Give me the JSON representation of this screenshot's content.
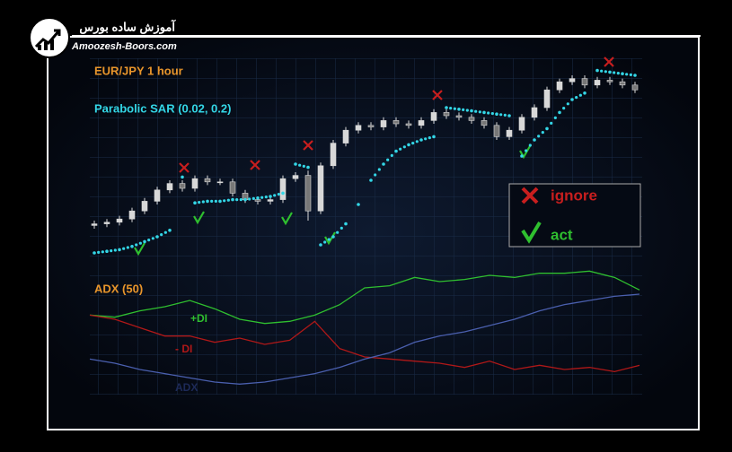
{
  "header": {
    "site_name": "آموزش ساده بورس",
    "url": "Amoozesh-Boors.com"
  },
  "chart_data": {
    "type": "candlestick",
    "title": "EUR/JPY 1 hour",
    "indicator": "Parabolic SAR (0.02, 0.2)",
    "legend": {
      "ignore": "ignore",
      "act": "act"
    },
    "ylim": [
      -20,
      100
    ],
    "open": [
      2,
      3,
      4,
      6,
      11,
      17,
      24,
      28,
      25,
      31,
      29,
      29,
      22,
      18,
      17,
      18,
      31,
      33,
      11,
      39,
      53,
      61,
      64,
      63,
      67,
      65,
      64,
      67,
      72,
      70,
      69,
      67,
      64,
      57,
      61,
      69,
      75,
      86,
      91,
      93,
      89,
      92,
      91,
      89
    ],
    "close": [
      3,
      4,
      6,
      11,
      17,
      24,
      28,
      25,
      31,
      29,
      29,
      22,
      18,
      17,
      18,
      31,
      33,
      11,
      39,
      53,
      61,
      64,
      63,
      67,
      65,
      64,
      67,
      72,
      70,
      69,
      67,
      64,
      57,
      61,
      69,
      75,
      86,
      91,
      93,
      89,
      92,
      91,
      89,
      86
    ],
    "high": [
      5,
      6,
      8,
      13,
      19,
      26,
      30,
      30,
      33,
      33,
      31,
      31,
      24,
      20,
      20,
      33,
      35,
      36,
      41,
      55,
      63,
      66,
      66,
      69,
      69,
      67,
      69,
      74,
      74,
      72,
      71,
      69,
      66,
      63,
      71,
      77,
      88,
      93,
      95,
      95,
      94,
      94,
      93,
      91
    ],
    "low": [
      0,
      1,
      2,
      4,
      9,
      15,
      22,
      23,
      23,
      27,
      27,
      20,
      16,
      15,
      15,
      16,
      29,
      5,
      9,
      37,
      51,
      59,
      61,
      61,
      63,
      62,
      62,
      65,
      68,
      67,
      65,
      62,
      55,
      55,
      59,
      67,
      73,
      84,
      89,
      87,
      87,
      89,
      87,
      84
    ],
    "sar": [
      -15,
      -14,
      -13,
      -11,
      -8,
      -5,
      -1,
      32,
      16,
      17,
      17,
      18,
      18,
      19,
      20,
      22,
      40,
      38,
      -10,
      -5,
      3,
      15,
      30,
      40,
      48,
      52,
      55,
      57,
      75,
      74,
      73,
      72,
      71,
      70,
      45,
      55,
      62,
      72,
      80,
      84,
      98,
      97,
      96,
      95
    ],
    "candle_color": "#d8d8d8",
    "sar_color": "#33d6e6",
    "adx_panel": {
      "type": "line",
      "title": "ADX  (50)",
      "ylim": [
        0,
        60
      ],
      "series": [
        {
          "name": "+DI",
          "color": "#2fbf2f",
          "values": [
            38,
            37,
            40,
            42,
            45,
            41,
            36,
            34,
            35,
            38,
            43,
            51,
            52,
            56,
            54,
            55,
            57,
            56,
            58,
            58,
            59,
            56,
            50
          ]
        },
        {
          "name": "- DI",
          "color": "#b01818",
          "values": [
            38,
            36,
            32,
            28,
            28,
            25,
            27,
            24,
            26,
            35,
            22,
            18,
            17,
            16,
            15,
            13,
            16,
            12,
            14,
            12,
            13,
            11,
            14
          ]
        },
        {
          "name": "ADX",
          "color": "#4a5fae",
          "values": [
            17,
            15,
            12,
            10,
            8,
            6,
            5,
            6,
            8,
            10,
            13,
            17,
            20,
            25,
            28,
            30,
            33,
            36,
            40,
            43,
            45,
            47,
            48
          ]
        }
      ]
    }
  }
}
